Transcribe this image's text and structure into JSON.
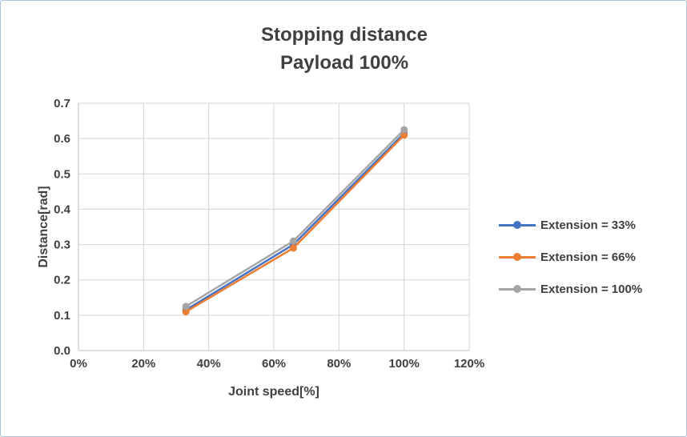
{
  "chart_data": {
    "type": "line",
    "title": "Stopping distance",
    "subtitle": "Payload 100%",
    "xlabel": "Joint speed[%]",
    "ylabel": "Distance[rad]",
    "x": [
      33,
      66,
      100
    ],
    "series": [
      {
        "name": "Extension = 33%",
        "color": "#4472c4",
        "values": [
          0.115,
          0.3,
          0.615
        ]
      },
      {
        "name": "Extension = 66%",
        "color": "#ed7d31",
        "values": [
          0.11,
          0.29,
          0.61
        ]
      },
      {
        "name": "Extension = 100%",
        "color": "#a5a5a5",
        "values": [
          0.125,
          0.31,
          0.625
        ]
      }
    ],
    "xlim": [
      0,
      120
    ],
    "ylim": [
      0,
      0.7
    ],
    "xticks": [
      0,
      20,
      40,
      60,
      80,
      100,
      120
    ],
    "xtick_labels": [
      "0%",
      "20%",
      "40%",
      "60%",
      "80%",
      "100%",
      "120%"
    ],
    "yticks": [
      0,
      0.1,
      0.2,
      0.3,
      0.4,
      0.5,
      0.6,
      0.7
    ],
    "ytick_labels": [
      "0.0",
      "0.1",
      "0.2",
      "0.3",
      "0.4",
      "0.5",
      "0.6",
      "0.7"
    ],
    "grid": true,
    "legend_position": "right"
  }
}
